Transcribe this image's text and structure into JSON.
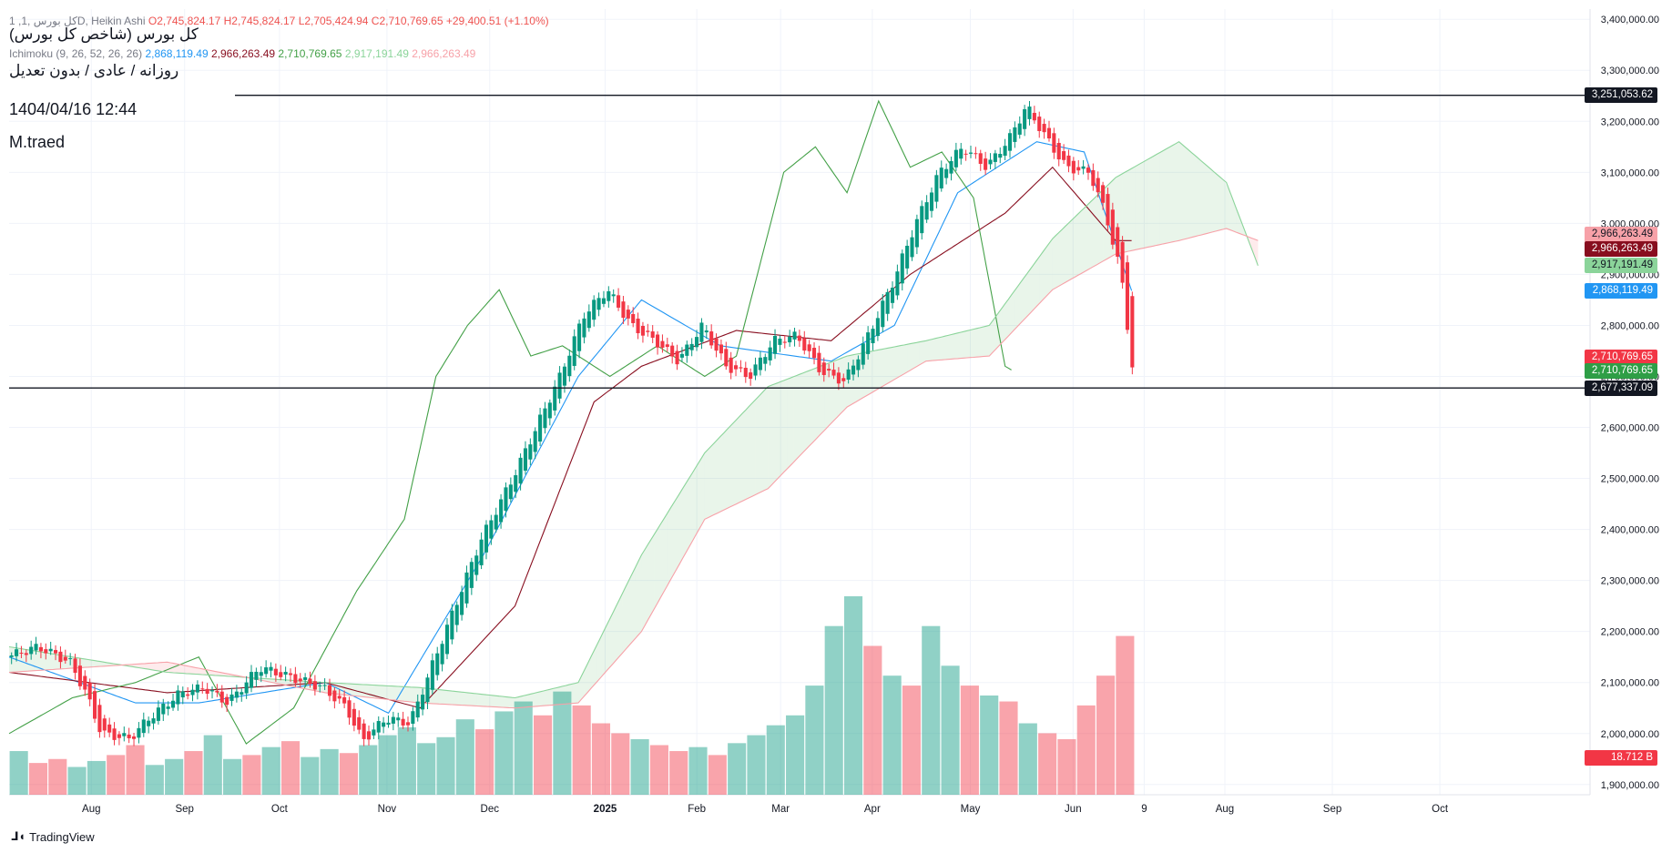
{
  "legend": {
    "title_prefix": "1 ,کل بورس ,1D, Heikin Ashi",
    "open": "O2,745,824.17",
    "high": "H2,745,824.17",
    "low": "L2,705,424.94",
    "close": "C2,710,769.65",
    "change": "+29,400.51 (+1.10%)",
    "ichimoku_label": "Ichimoku (9, 26, 52, 26, 26)",
    "ichimoku_values": [
      "2,868,119.49",
      "2,966,263.49",
      "2,710,769.65",
      "2,917,191.49",
      "2,966,263.49"
    ]
  },
  "overlay": {
    "line1": "کل بورس (شاخص کل بورس)",
    "line2": "روزانه / عادی / بدون تعدیل",
    "datetime": "1404/04/16 12:44",
    "author": "M.traed"
  },
  "price_tags": [
    {
      "value": "3,251,053.62",
      "price": 3251053.62,
      "color": "#131722"
    },
    {
      "value": "2,966,263.49",
      "price": 2978000,
      "color": "#f7a1a8"
    },
    {
      "value": "2,966,263.49",
      "price": 2950000,
      "color": "#880e1f"
    },
    {
      "value": "2,917,191.49",
      "price": 2917191.49,
      "color": "#8bd49a"
    },
    {
      "value": "2,868,119.49",
      "price": 2868119.49,
      "color": "#2196f3"
    },
    {
      "value": "2,710,769.65",
      "price": 2738000,
      "color": "#f23645"
    },
    {
      "value": "2,710,769.65",
      "price": 2710769.65,
      "color": "#2e9e46"
    },
    {
      "value": "2,677,337.09",
      "price": 2677337.09,
      "color": "#131722"
    }
  ],
  "volume_tag": {
    "value": "18.712 B",
    "color": "#f23645"
  },
  "branding": {
    "name": "TradingView"
  },
  "chart_data": {
    "type": "candlestick",
    "title": "کل بورس (شاخص کل بورس)",
    "ylim": [
      1880000,
      3420000
    ],
    "y_ticks": [
      1900000,
      2000000,
      2100000,
      2200000,
      2300000,
      2400000,
      2500000,
      2600000,
      2700000,
      2800000,
      2900000,
      3000000,
      3100000,
      3200000,
      3300000,
      3400000
    ],
    "y_tick_labels": [
      "1,900,000.00",
      "2,000,000.00",
      "2,100,000.00",
      "2,200,000.00",
      "2,300,000.00",
      "2,400,000.00",
      "2,500,000.00",
      "2,600,000.00",
      "2,700,000.00",
      "2,800,000.00",
      "2,900,000.00",
      "3,000,000.00",
      "3,100,000.00",
      "3,200,000.00",
      "3,300,000.00",
      "3,400,000.00"
    ],
    "x_labels": [
      {
        "label": "Aug",
        "t": 0.052
      },
      {
        "label": "Sep",
        "t": 0.111
      },
      {
        "label": "Oct",
        "t": 0.171
      },
      {
        "label": "Nov",
        "t": 0.239
      },
      {
        "label": "Dec",
        "t": 0.304
      },
      {
        "label": "2025",
        "t": 0.377
      },
      {
        "label": "Feb",
        "t": 0.435
      },
      {
        "label": "Mar",
        "t": 0.488
      },
      {
        "label": "Apr",
        "t": 0.546
      },
      {
        "label": "May",
        "t": 0.608
      },
      {
        "label": "Jun",
        "t": 0.673
      },
      {
        "label": "9",
        "t": 0.718
      },
      {
        "label": "Aug",
        "t": 0.769
      },
      {
        "label": "Sep",
        "t": 0.837
      },
      {
        "label": "Oct",
        "t": 0.905
      }
    ],
    "horizontal_levels": [
      3251053.62,
      2677337.09
    ],
    "price_path": [
      [
        0,
        2150000
      ],
      [
        0.02,
        2170000
      ],
      [
        0.04,
        2140000
      ],
      [
        0.05,
        2080000
      ],
      [
        0.06,
        2000000
      ],
      [
        0.078,
        1990000
      ],
      [
        0.09,
        2030000
      ],
      [
        0.11,
        2080000
      ],
      [
        0.125,
        2090000
      ],
      [
        0.14,
        2060000
      ],
      [
        0.16,
        2130000
      ],
      [
        0.18,
        2110000
      ],
      [
        0.2,
        2090000
      ],
      [
        0.215,
        2050000
      ],
      [
        0.225,
        1985000
      ],
      [
        0.24,
        2030000
      ],
      [
        0.255,
        2020000
      ],
      [
        0.265,
        2100000
      ],
      [
        0.28,
        2220000
      ],
      [
        0.3,
        2380000
      ],
      [
        0.32,
        2500000
      ],
      [
        0.335,
        2600000
      ],
      [
        0.35,
        2700000
      ],
      [
        0.365,
        2820000
      ],
      [
        0.38,
        2870000
      ],
      [
        0.395,
        2800000
      ],
      [
        0.41,
        2770000
      ],
      [
        0.425,
        2730000
      ],
      [
        0.44,
        2800000
      ],
      [
        0.455,
        2720000
      ],
      [
        0.47,
        2700000
      ],
      [
        0.485,
        2770000
      ],
      [
        0.5,
        2780000
      ],
      [
        0.515,
        2710000
      ],
      [
        0.53,
        2690000
      ],
      [
        0.545,
        2780000
      ],
      [
        0.56,
        2880000
      ],
      [
        0.575,
        3000000
      ],
      [
        0.59,
        3100000
      ],
      [
        0.605,
        3150000
      ],
      [
        0.62,
        3110000
      ],
      [
        0.635,
        3170000
      ],
      [
        0.645,
        3230000
      ],
      [
        0.655,
        3180000
      ],
      [
        0.67,
        3110000
      ],
      [
        0.685,
        3100000
      ],
      [
        0.695,
        3020000
      ],
      [
        0.705,
        2900000
      ],
      [
        0.712,
        2720000
      ]
    ],
    "series": [
      {
        "name": "Tenkan-sen",
        "color": "#2196f3",
        "points": [
          [
            0,
            2150000
          ],
          [
            0.08,
            2060000
          ],
          [
            0.12,
            2060000
          ],
          [
            0.2,
            2100000
          ],
          [
            0.24,
            2040000
          ],
          [
            0.3,
            2350000
          ],
          [
            0.36,
            2700000
          ],
          [
            0.4,
            2850000
          ],
          [
            0.45,
            2760000
          ],
          [
            0.52,
            2730000
          ],
          [
            0.56,
            2800000
          ],
          [
            0.6,
            3060000
          ],
          [
            0.65,
            3160000
          ],
          [
            0.68,
            3140000
          ],
          [
            0.71,
            2868119.49
          ]
        ]
      },
      {
        "name": "Kijun-sen",
        "color": "#880e1f",
        "points": [
          [
            0,
            2120000
          ],
          [
            0.1,
            2080000
          ],
          [
            0.2,
            2100000
          ],
          [
            0.26,
            2050000
          ],
          [
            0.32,
            2250000
          ],
          [
            0.37,
            2650000
          ],
          [
            0.4,
            2720000
          ],
          [
            0.46,
            2790000
          ],
          [
            0.52,
            2770000
          ],
          [
            0.57,
            2900000
          ],
          [
            0.63,
            3020000
          ],
          [
            0.66,
            3110000
          ],
          [
            0.7,
            2966263.49
          ],
          [
            0.71,
            2966263.49
          ]
        ]
      },
      {
        "name": "Chikou Span",
        "color": "#43a047",
        "points": [
          [
            0,
            2000000
          ],
          [
            0.04,
            2070000
          ],
          [
            0.08,
            2100000
          ],
          [
            0.12,
            2150000
          ],
          [
            0.15,
            1980000
          ],
          [
            0.18,
            2050000
          ],
          [
            0.22,
            2280000
          ],
          [
            0.25,
            2420000
          ],
          [
            0.27,
            2700000
          ],
          [
            0.29,
            2800000
          ],
          [
            0.31,
            2870000
          ],
          [
            0.33,
            2740000
          ],
          [
            0.35,
            2760000
          ],
          [
            0.38,
            2700000
          ],
          [
            0.41,
            2760000
          ],
          [
            0.44,
            2700000
          ],
          [
            0.46,
            2740000
          ],
          [
            0.49,
            3100000
          ],
          [
            0.51,
            3150000
          ],
          [
            0.53,
            3060000
          ],
          [
            0.55,
            3240000
          ],
          [
            0.57,
            3110000
          ],
          [
            0.59,
            3140000
          ],
          [
            0.61,
            3050000
          ],
          [
            0.63,
            2720000
          ],
          [
            0.635,
            2710769.65
          ]
        ]
      },
      {
        "name": "Senkou Span A",
        "color": "#8bd49a",
        "points": [
          [
            0,
            2170000
          ],
          [
            0.1,
            2120000
          ],
          [
            0.2,
            2100000
          ],
          [
            0.26,
            2090000
          ],
          [
            0.32,
            2070000
          ],
          [
            0.36,
            2100000
          ],
          [
            0.4,
            2350000
          ],
          [
            0.44,
            2550000
          ],
          [
            0.48,
            2680000
          ],
          [
            0.53,
            2740000
          ],
          [
            0.58,
            2770000
          ],
          [
            0.62,
            2800000
          ],
          [
            0.66,
            2970000
          ],
          [
            0.7,
            3090000
          ],
          [
            0.74,
            3160000
          ],
          [
            0.77,
            3080000
          ],
          [
            0.79,
            2917191.49
          ]
        ]
      },
      {
        "name": "Senkou Span B",
        "color": "#f7a1a8",
        "points": [
          [
            0,
            2120000
          ],
          [
            0.1,
            2140000
          ],
          [
            0.2,
            2080000
          ],
          [
            0.26,
            2060000
          ],
          [
            0.32,
            2050000
          ],
          [
            0.36,
            2060000
          ],
          [
            0.4,
            2200000
          ],
          [
            0.44,
            2420000
          ],
          [
            0.48,
            2480000
          ],
          [
            0.53,
            2640000
          ],
          [
            0.58,
            2730000
          ],
          [
            0.62,
            2740000
          ],
          [
            0.66,
            2870000
          ],
          [
            0.7,
            2940000
          ],
          [
            0.74,
            2966263.49
          ],
          [
            0.77,
            2990000
          ],
          [
            0.79,
            2966263.49
          ]
        ]
      }
    ],
    "volume": {
      "last": "18.712 B",
      "bars": [
        0.22,
        0.16,
        0.18,
        0.14,
        0.17,
        0.2,
        0.25,
        0.15,
        0.18,
        0.22,
        0.3,
        0.18,
        0.2,
        0.24,
        0.27,
        0.19,
        0.23,
        0.21,
        0.25,
        0.3,
        0.34,
        0.26,
        0.29,
        0.38,
        0.33,
        0.42,
        0.47,
        0.4,
        0.52,
        0.45,
        0.36,
        0.31,
        0.28,
        0.25,
        0.22,
        0.24,
        0.2,
        0.26,
        0.3,
        0.35,
        0.4,
        0.55,
        0.85,
        1.0,
        0.75,
        0.6,
        0.55,
        0.85,
        0.65,
        0.55,
        0.5,
        0.47,
        0.36,
        0.31,
        0.28,
        0.45,
        0.6,
        0.8
      ],
      "up": [
        true,
        false,
        false,
        true,
        true,
        false,
        false,
        true,
        true,
        false,
        true,
        true,
        false,
        true,
        false,
        true,
        true,
        false,
        true,
        true,
        true,
        true,
        true,
        true,
        false,
        true,
        true,
        false,
        true,
        false,
        false,
        false,
        true,
        false,
        false,
        true,
        false,
        true,
        true,
        true,
        true,
        true,
        true,
        true,
        false,
        true,
        false,
        true,
        true,
        false,
        true,
        false,
        true,
        false,
        false,
        false,
        false,
        false
      ]
    }
  }
}
